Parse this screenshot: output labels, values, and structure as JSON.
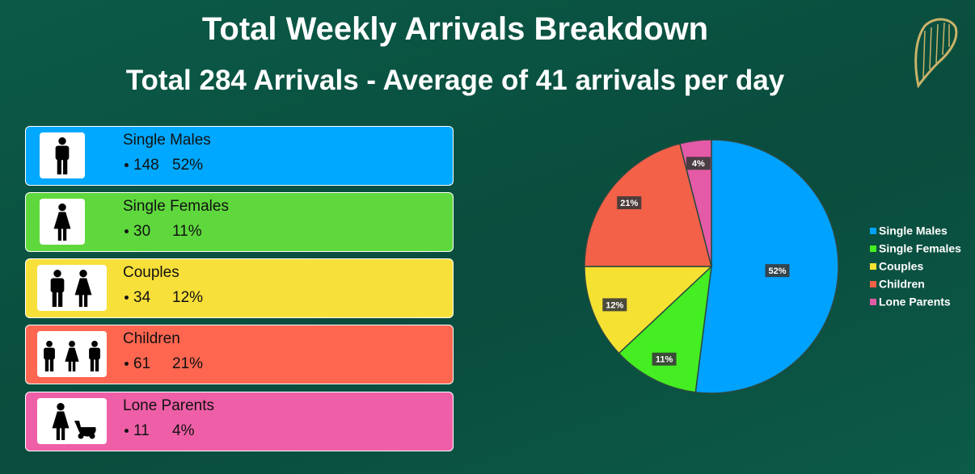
{
  "title": "Total Weekly Arrivals Breakdown",
  "subtitle": "Total 284 Arrivals - Average of  41 arrivals per day",
  "cards": [
    {
      "label": "Single Males",
      "count": 148,
      "percent": "52%"
    },
    {
      "label": "Single Females",
      "count": 30,
      "percent": "11%"
    },
    {
      "label": "Couples",
      "count": 34,
      "percent": "12%"
    },
    {
      "label": "Children",
      "count": 61,
      "percent": "21%"
    },
    {
      "label": "Lone Parents",
      "count": 11,
      "percent": "4%"
    }
  ],
  "chart_data": {
    "type": "pie",
    "categories": [
      "Single Males",
      "Single Females",
      "Couples",
      "Children",
      "Lone Parents"
    ],
    "values": [
      52,
      11,
      12,
      21,
      4
    ],
    "value_labels": [
      "52%",
      "11%",
      "12%",
      "21%",
      "4%"
    ],
    "colors": [
      "#00a2ff",
      "#44ee22",
      "#f5e132",
      "#f26148",
      "#e45aa6"
    ],
    "legend": "right"
  }
}
